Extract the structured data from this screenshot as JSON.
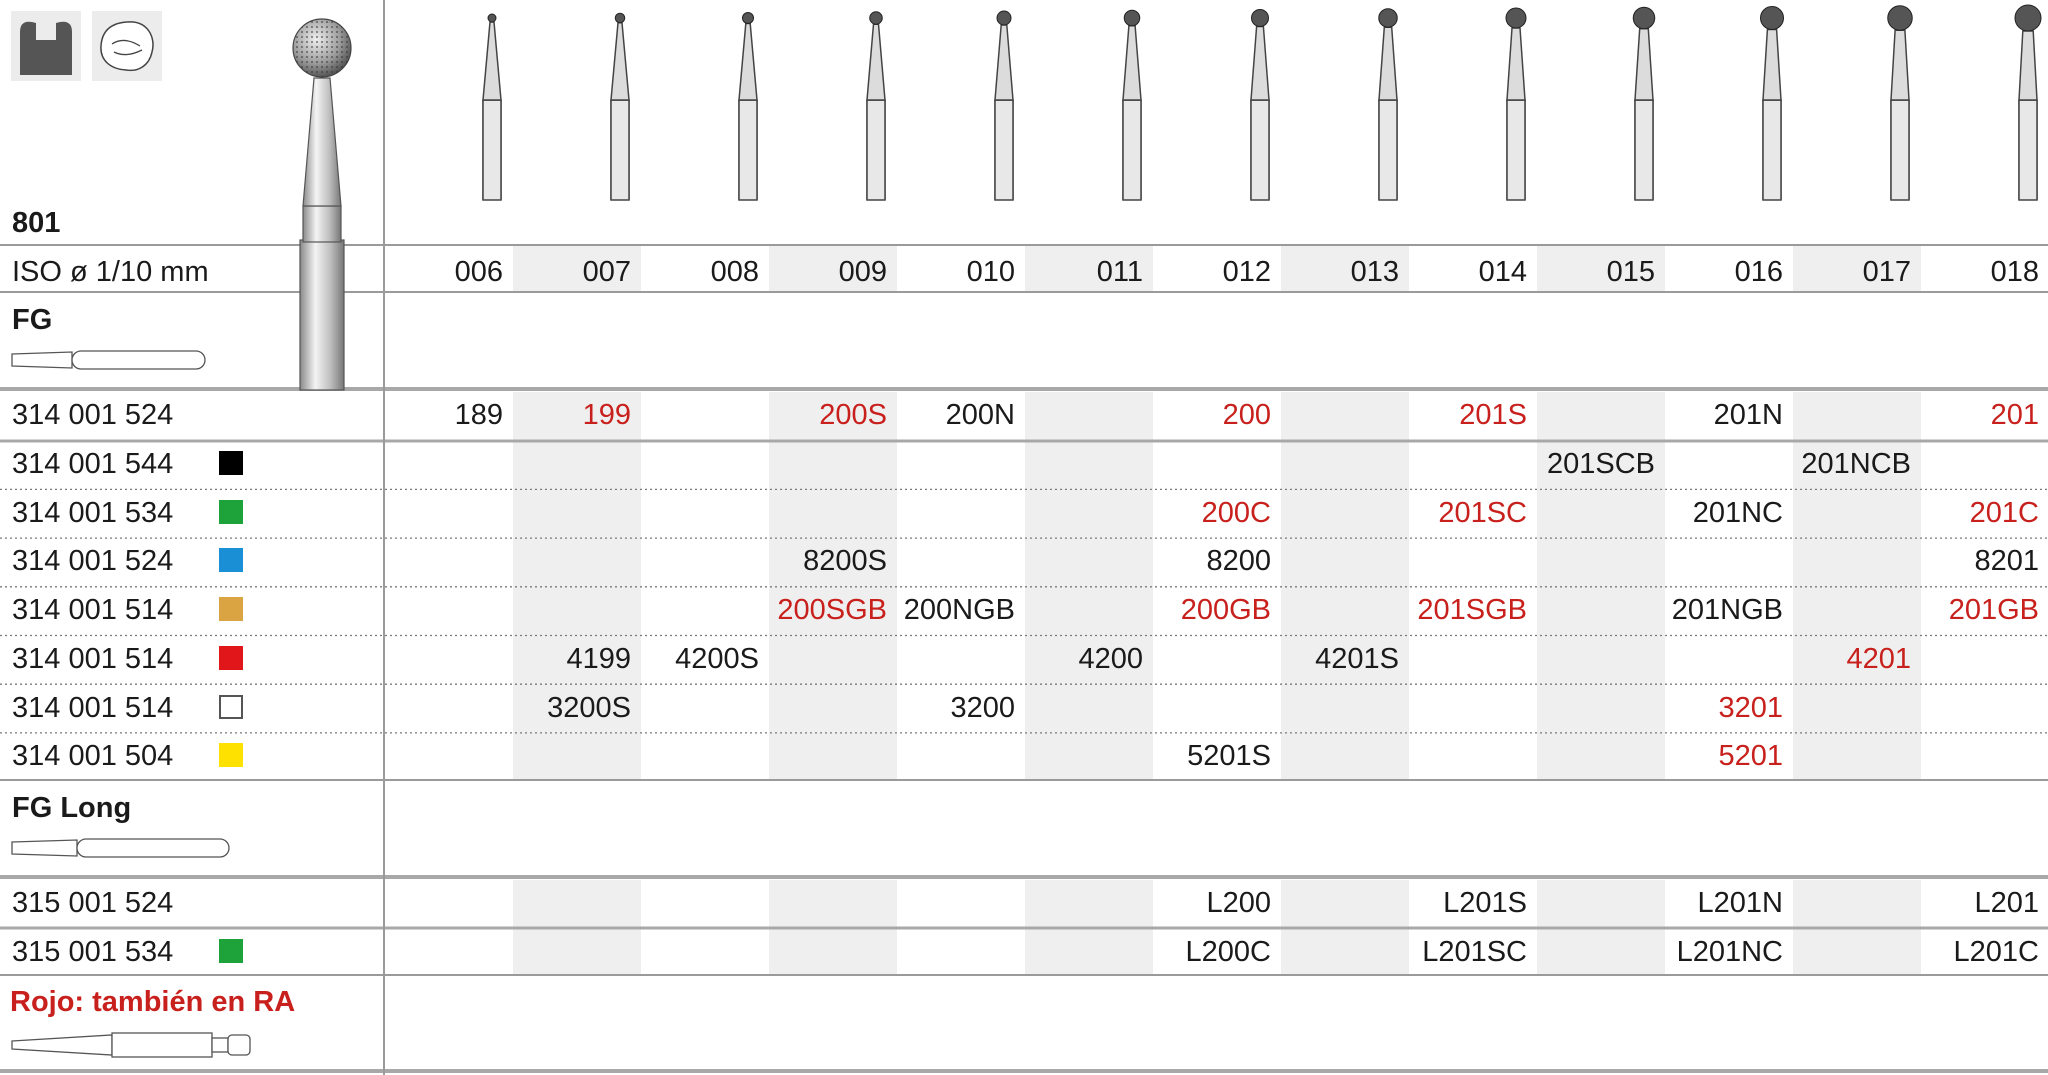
{
  "header": {
    "model": "801",
    "iso_label": "ISO ø 1/10 mm",
    "sizes": [
      "006",
      "007",
      "008",
      "009",
      "010",
      "011",
      "012",
      "013",
      "014",
      "015",
      "016",
      "017",
      "018"
    ]
  },
  "icons": [
    "crown-prep-icon",
    "occlusal-view-icon"
  ],
  "sections": [
    {
      "label": "FG",
      "rows": [
        {
          "ref": "314 001 524",
          "color": null,
          "values": [
            "189",
            "199",
            "",
            "200S",
            "200N",
            "",
            "200",
            "",
            "201S",
            "",
            "201N",
            "",
            "201"
          ],
          "red": [
            false,
            true,
            false,
            true,
            false,
            false,
            true,
            false,
            true,
            false,
            false,
            false,
            true
          ]
        },
        {
          "ref": "314 001 544",
          "color": "#000000",
          "values": [
            "",
            "",
            "",
            "",
            "",
            "",
            "",
            "",
            "",
            "201SCB",
            "",
            "201NCB",
            ""
          ],
          "red": [
            false,
            false,
            false,
            false,
            false,
            false,
            false,
            false,
            false,
            false,
            false,
            false,
            false
          ]
        },
        {
          "ref": "314 001 534",
          "color": "#1ea33a",
          "values": [
            "",
            "",
            "",
            "",
            "",
            "",
            "200C",
            "",
            "201SC",
            "",
            "201NC",
            "",
            "201C"
          ],
          "red": [
            false,
            false,
            false,
            false,
            false,
            false,
            true,
            false,
            true,
            false,
            false,
            false,
            true
          ]
        },
        {
          "ref": "314 001 524",
          "color": "#1a8fd6",
          "values": [
            "",
            "",
            "",
            "8200S",
            "",
            "",
            "8200",
            "",
            "",
            "",
            "",
            "",
            "8201"
          ],
          "red": [
            false,
            false,
            false,
            false,
            false,
            false,
            false,
            false,
            false,
            false,
            false,
            false,
            false
          ]
        },
        {
          "ref": "314 001 514",
          "color": "#d9a441",
          "values": [
            "",
            "",
            "",
            "200SGB",
            "200NGB",
            "",
            "200GB",
            "",
            "201SGB",
            "",
            "201NGB",
            "",
            "201GB"
          ],
          "red": [
            false,
            false,
            false,
            true,
            false,
            false,
            true,
            false,
            true,
            false,
            false,
            false,
            true
          ]
        },
        {
          "ref": "314 001 514",
          "color": "#e0161b",
          "values": [
            "",
            "4199",
            "4200S",
            "",
            "",
            "4200",
            "",
            "4201S",
            "",
            "",
            "",
            "4201",
            ""
          ],
          "red": [
            false,
            false,
            false,
            false,
            false,
            false,
            false,
            false,
            false,
            false,
            false,
            true,
            false
          ]
        },
        {
          "ref": "314 001 514",
          "color": "#ffffff",
          "values": [
            "",
            "3200S",
            "",
            "",
            "3200",
            "",
            "",
            "",
            "",
            "",
            "3201",
            "",
            ""
          ],
          "red": [
            false,
            false,
            false,
            false,
            false,
            false,
            false,
            false,
            false,
            false,
            true,
            false,
            false
          ]
        },
        {
          "ref": "314 001 504",
          "color": "#ffe100",
          "values": [
            "",
            "",
            "",
            "",
            "",
            "",
            "5201S",
            "",
            "",
            "",
            "5201",
            "",
            ""
          ],
          "red": [
            false,
            false,
            false,
            false,
            false,
            false,
            false,
            false,
            false,
            false,
            true,
            false,
            false
          ]
        }
      ]
    },
    {
      "label": "FG Long",
      "rows": [
        {
          "ref": "315 001 524",
          "color": null,
          "values": [
            "",
            "",
            "",
            "",
            "",
            "",
            "L200",
            "",
            "L201S",
            "",
            "L201N",
            "",
            "L201"
          ],
          "red": [
            false,
            false,
            false,
            false,
            false,
            false,
            false,
            false,
            false,
            false,
            false,
            false,
            false
          ]
        },
        {
          "ref": "315 001 534",
          "color": "#1ea33a",
          "values": [
            "",
            "",
            "",
            "",
            "",
            "",
            "L200C",
            "",
            "L201SC",
            "",
            "L201NC",
            "",
            "L201C"
          ],
          "red": [
            false,
            false,
            false,
            false,
            false,
            false,
            false,
            false,
            false,
            false,
            false,
            false,
            false
          ]
        }
      ]
    }
  ],
  "footer_note": "Rojo: también en RA"
}
